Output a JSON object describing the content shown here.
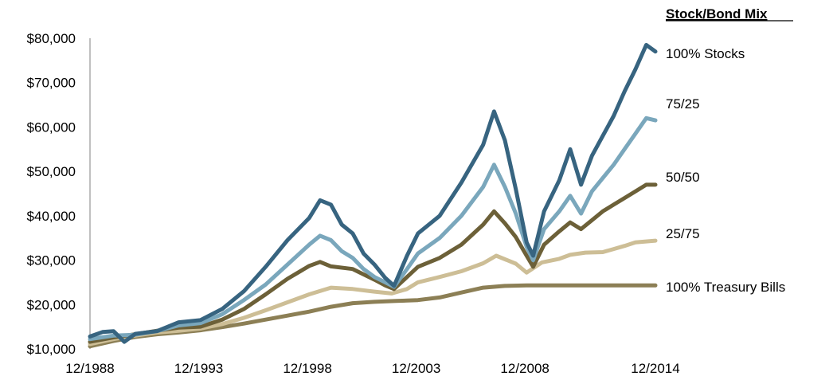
{
  "chart_data": {
    "type": "line",
    "legend_title": "Stock/Bond Mix",
    "legend_placement": "right",
    "grid": false,
    "x_ticks": [
      "12/1988",
      "12/1993",
      "12/1998",
      "12/2003",
      "12/2008",
      "12/2014"
    ],
    "y_ticks": [
      "$10,000",
      "$20,000",
      "$30,000",
      "$40,000",
      "$50,000",
      "$60,000",
      "$70,000",
      "$80,000"
    ],
    "xlim": [
      1988.92,
      2014.92
    ],
    "ylim": [
      10000,
      80000
    ],
    "series": [
      {
        "name": "100% Treasury Bills",
        "color": "#8C7F55",
        "x": [
          1988.92,
          1990,
          1991,
          1992,
          1993,
          1994,
          1995,
          1996,
          1997,
          1998,
          1999,
          2000,
          2001,
          2002,
          2003,
          2004,
          2005,
          2006,
          2007,
          2008,
          2009,
          2010,
          2011,
          2012,
          2013,
          2014,
          2014.92
        ],
        "values": [
          10600,
          11800,
          12700,
          13300,
          13700,
          14200,
          14900,
          15700,
          16600,
          17500,
          18400,
          19500,
          20300,
          20600,
          20800,
          21000,
          21600,
          22700,
          23800,
          24200,
          24300,
          24300,
          24300,
          24300,
          24300,
          24300,
          24300
        ]
      },
      {
        "name": "25/75",
        "color": "#CDBE96",
        "x": [
          1988.92,
          1990,
          1991,
          1992,
          1993,
          1994,
          1995,
          1996,
          1997,
          1998,
          1999,
          2000,
          2001,
          2002,
          2002.8,
          2003.5,
          2004,
          2005,
          2006,
          2007,
          2007.6,
          2008.5,
          2009,
          2009.7,
          2010.5,
          2011,
          2011.7,
          2012.5,
          2013,
          2013.5,
          2014,
          2014.92
        ],
        "values": [
          11100,
          12200,
          13000,
          13700,
          14100,
          14600,
          15600,
          17000,
          18700,
          20500,
          22300,
          23800,
          23500,
          22900,
          22500,
          23500,
          25000,
          26200,
          27500,
          29300,
          31000,
          29200,
          27200,
          29500,
          30300,
          31200,
          31700,
          31800,
          32500,
          33200,
          34000,
          34400
        ]
      },
      {
        "name": "50/50",
        "color": "#6C6038",
        "x": [
          1988.92,
          1990,
          1991,
          1992,
          1993,
          1994,
          1995,
          1996,
          1997,
          1998,
          1999,
          1999.5,
          2000,
          2001,
          2002,
          2002.5,
          2002.9,
          2003.5,
          2004,
          2005,
          2006,
          2007,
          2007.5,
          2008,
          2008.5,
          2009,
          2009.3,
          2009.8,
          2010.5,
          2011,
          2011.5,
          2012,
          2012.5,
          2013,
          2013.5,
          2014,
          2014.5,
          2014.92
        ],
        "values": [
          11600,
          12600,
          13300,
          14100,
          14800,
          15000,
          16600,
          19000,
          22300,
          25800,
          28700,
          29600,
          28600,
          28000,
          25600,
          24300,
          23500,
          26200,
          28500,
          30500,
          33500,
          38000,
          41000,
          38300,
          35200,
          31000,
          28500,
          33500,
          36500,
          38500,
          37000,
          39000,
          41000,
          42500,
          44000,
          45500,
          47000,
          47000
        ]
      },
      {
        "name": "75/25",
        "color": "#7AA7BC",
        "x": [
          1988.92,
          1990,
          1991,
          1992,
          1993,
          1994,
          1995,
          1996,
          1997,
          1998,
          1999,
          1999.5,
          2000,
          2000.5,
          2001,
          2001.5,
          2002,
          2002.5,
          2002.9,
          2003.5,
          2004,
          2005,
          2006,
          2007,
          2007.5,
          2008,
          2008.5,
          2009,
          2009.3,
          2009.8,
          2010.5,
          2011,
          2011.5,
          2012,
          2012.5,
          2013,
          2013.5,
          2014,
          2014.5,
          2014.92
        ],
        "values": [
          12200,
          13000,
          13200,
          14000,
          15300,
          15800,
          17800,
          21000,
          24500,
          29000,
          33500,
          35500,
          34500,
          32000,
          30500,
          28000,
          26200,
          25000,
          24000,
          28000,
          31500,
          35000,
          40000,
          46500,
          51500,
          46500,
          40500,
          33000,
          30000,
          37000,
          41000,
          44500,
          40500,
          45500,
          48500,
          51500,
          55000,
          58500,
          62000,
          61500
        ]
      },
      {
        "name": "100% Stocks",
        "color": "#376480",
        "x": [
          1988.92,
          1989.5,
          1990,
          1990.5,
          1991,
          1992,
          1993,
          1994,
          1995,
          1996,
          1997,
          1998,
          1999,
          1999.5,
          2000,
          2000.5,
          2001,
          2001.5,
          2002,
          2002.5,
          2002.9,
          2003.5,
          2004,
          2005,
          2006,
          2007,
          2007.5,
          2008,
          2008.5,
          2009,
          2009.3,
          2009.8,
          2010.5,
          2011,
          2011.5,
          2012,
          2012.5,
          2013,
          2013.5,
          2014,
          2014.5,
          2014.92
        ],
        "values": [
          12800,
          13800,
          14000,
          11600,
          13400,
          14000,
          16000,
          16500,
          19000,
          23000,
          28500,
          34500,
          39500,
          43500,
          42500,
          38000,
          36000,
          31500,
          29000,
          26000,
          24200,
          31000,
          36000,
          40000,
          47500,
          56000,
          63500,
          57000,
          46000,
          34000,
          31000,
          41000,
          48000,
          55000,
          47000,
          53500,
          58000,
          62500,
          68000,
          73000,
          78500,
          77000
        ]
      }
    ]
  }
}
